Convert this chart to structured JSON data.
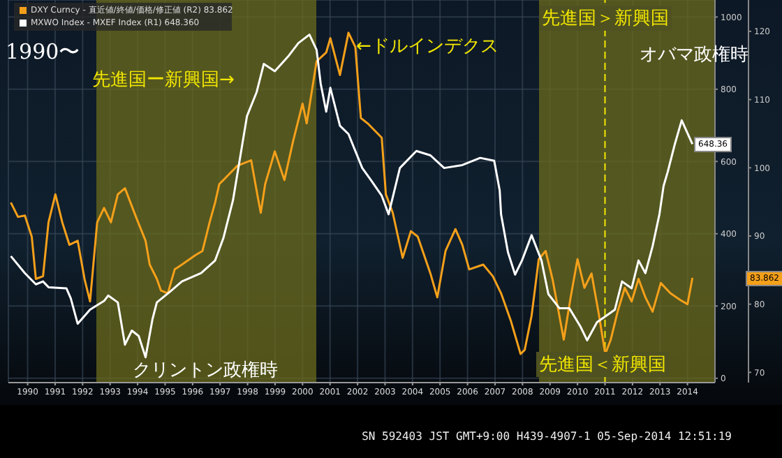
{
  "chart_data": {
    "type": "line",
    "xlim": [
      1989.8,
      2015.5
    ],
    "xticks": [
      {
        "value": 1990.5,
        "label": "1990"
      },
      {
        "value": 1991.5,
        "label": "1991"
      },
      {
        "value": 1992.5,
        "label": "1992"
      },
      {
        "value": 1993.5,
        "label": "1993"
      },
      {
        "value": 1994.5,
        "label": "1994"
      },
      {
        "value": 1995.5,
        "label": "1995"
      },
      {
        "value": 1996.5,
        "label": "1996"
      },
      {
        "value": 1997.5,
        "label": "1997"
      },
      {
        "value": 1998.5,
        "label": "1998"
      },
      {
        "value": 1999.5,
        "label": "1999"
      },
      {
        "value": 2000.5,
        "label": "2000"
      },
      {
        "value": 2001.5,
        "label": "2001"
      },
      {
        "value": 2002.5,
        "label": "2002"
      },
      {
        "value": 2003.5,
        "label": "2003"
      },
      {
        "value": 2004.5,
        "label": "2004"
      },
      {
        "value": 2005.5,
        "label": "2005"
      },
      {
        "value": 2006.5,
        "label": "2006"
      },
      {
        "value": 2007.5,
        "label": "2007"
      },
      {
        "value": 2008.5,
        "label": "2008"
      },
      {
        "value": 2009.5,
        "label": "2009"
      },
      {
        "value": 2010.5,
        "label": "2010"
      },
      {
        "value": 2011.5,
        "label": "2011"
      },
      {
        "value": 2012.5,
        "label": "2012"
      },
      {
        "value": 2013.5,
        "label": "2013"
      },
      {
        "value": 2014.5,
        "label": "2014"
      }
    ],
    "ylim": [
      -12,
      1047
    ],
    "yticks": [
      0,
      200,
      400,
      600,
      800,
      1000
    ],
    "y2lim": [
      68.5,
      124.6
    ],
    "y2ticks": [
      70,
      80,
      90,
      100,
      110,
      120
    ],
    "grid": true,
    "legend": "top left",
    "series": [
      {
        "name": "DXY Curncy - 直近値/終値/価格/修正値 (R2) 83.862",
        "color": "#f5a01a",
        "axis": "y2",
        "x": [
          1989.89,
          1990.15,
          1990.4,
          1990.65,
          1990.8,
          1991.06,
          1991.26,
          1991.51,
          1991.76,
          1992.02,
          1992.32,
          1992.57,
          1992.77,
          1993.03,
          1993.28,
          1993.53,
          1993.78,
          1994.04,
          1994.44,
          1994.79,
          1994.94,
          1995.2,
          1995.35,
          1995.6,
          1995.85,
          1996.11,
          1996.61,
          1996.86,
          1997.12,
          1997.32,
          1997.47,
          1997.62,
          1998.13,
          1998.63,
          1998.88,
          1998.98,
          1999.14,
          1999.49,
          1999.84,
          2000.15,
          2000.5,
          2000.65,
          2001.01,
          2001.36,
          2001.51,
          2001.86,
          2002.17,
          2002.42,
          2002.62,
          2002.87,
          2003.38,
          2003.53,
          2003.78,
          2004.14,
          2004.44,
          2004.69,
          2005.15,
          2005.4,
          2005.7,
          2006.06,
          2006.31,
          2006.56,
          2007.07,
          2007.42,
          2007.72,
          2008.08,
          2008.43,
          2008.58,
          2008.83,
          2009.09,
          2009.34,
          2009.59,
          2009.84,
          2010.0,
          2010.25,
          2010.5,
          2010.75,
          2011.01,
          2011.26,
          2011.51,
          2011.71,
          2011.96,
          2012.22,
          2012.47,
          2012.72,
          2012.97,
          2013.23,
          2013.53,
          2013.88,
          2014.24,
          2014.5,
          2014.68
        ],
        "values": [
          94.9,
          92.8,
          93.0,
          89.9,
          83.7,
          84.1,
          92.0,
          96.1,
          92.0,
          88.7,
          89.3,
          83.7,
          80.4,
          92.0,
          94.1,
          92.0,
          96.1,
          97.0,
          92.8,
          89.3,
          85.8,
          83.7,
          82.0,
          81.6,
          85.1,
          85.8,
          87.2,
          87.8,
          92.0,
          94.9,
          97.6,
          98.2,
          100.3,
          101.1,
          95.5,
          93.4,
          97.6,
          102.4,
          98.2,
          103.8,
          109.4,
          106.5,
          115.6,
          116.9,
          119.0,
          113.6,
          119.8,
          117.7,
          107.3,
          106.5,
          104.4,
          96.1,
          93.4,
          86.8,
          90.7,
          89.9,
          84.5,
          81.0,
          87.8,
          91.0,
          88.7,
          85.1,
          85.8,
          84.1,
          81.6,
          77.5,
          72.7,
          73.3,
          78.3,
          86.6,
          87.8,
          83.7,
          78.3,
          74.8,
          81.0,
          86.6,
          82.4,
          84.5,
          78.9,
          72.7,
          74.8,
          78.9,
          82.4,
          80.4,
          83.7,
          81.0,
          78.9,
          83.1,
          81.6,
          80.6,
          80.0,
          83.862
        ]
      },
      {
        "name": "MXWO Index - MXEF Index (R1) 648.360",
        "color": "#ffffff",
        "axis": "y",
        "x": [
          1989.89,
          1990.4,
          1990.8,
          1991.06,
          1991.26,
          1991.91,
          1992.07,
          1992.32,
          1992.77,
          1993.28,
          1993.43,
          1993.78,
          1994.04,
          1994.29,
          1994.54,
          1994.79,
          1995.04,
          1995.2,
          1995.7,
          1996.11,
          1996.81,
          1997.32,
          1997.62,
          1997.97,
          1998.48,
          1998.83,
          1999.09,
          1999.49,
          2000.0,
          2000.35,
          2000.75,
          2001.01,
          2001.16,
          2001.36,
          2001.51,
          2001.86,
          2002.17,
          2002.67,
          2003.03,
          2003.38,
          2003.63,
          2004.04,
          2004.64,
          2005.15,
          2005.65,
          2006.31,
          2006.96,
          2007.47,
          2007.67,
          2007.72,
          2007.97,
          2008.23,
          2008.48,
          2008.83,
          2009.19,
          2009.44,
          2009.84,
          2010.2,
          2010.6,
          2010.85,
          2011.21,
          2011.51,
          2011.86,
          2012.12,
          2012.47,
          2012.72,
          2012.97,
          2013.23,
          2013.48,
          2013.63,
          2013.78,
          2014.04,
          2014.29,
          2014.45,
          2014.68
        ],
        "values": [
          338,
          291,
          260,
          268,
          252,
          249,
          221,
          151,
          190,
          214,
          229,
          210,
          93,
          132,
          117,
          58,
          163,
          210,
          241,
          268,
          291,
          326,
          388,
          493,
          726,
          792,
          870,
          850,
          893,
          928,
          951,
          909,
          815,
          738,
          804,
          699,
          676,
          582,
          544,
          505,
          454,
          582,
          629,
          617,
          582,
          590,
          610,
          602,
          520,
          454,
          349,
          287,
          326,
          396,
          326,
          233,
          194,
          194,
          144,
          105,
          155,
          171,
          190,
          268,
          249,
          326,
          291,
          365,
          454,
          532,
          571,
          648,
          714,
          687,
          648.36
        ]
      }
    ],
    "bands": [
      {
        "axis": "x",
        "from": 1993.0,
        "to": 2001.0,
        "color": "#6b6b1c"
      },
      {
        "axis": "x",
        "from": 2009.1,
        "to": 2015.5,
        "color": "#6b6b1c"
      }
    ],
    "ref_lines": [
      {
        "axis": "x",
        "value": 2011.5,
        "color": "#f2e600",
        "line_style": "dashed"
      }
    ],
    "annotations": [
      "1990〜",
      "先進国ー新興国→",
      "←ドルインデクス",
      "先進国＞新興国",
      "オバマ政権時",
      "クリントン政権時",
      "先進国＜新興国",
      "648.36",
      "83.862",
      "SN 592403 JST  GMT+9:00 H439-4907-1 05-Sep-2014 12:51:19"
    ]
  }
}
